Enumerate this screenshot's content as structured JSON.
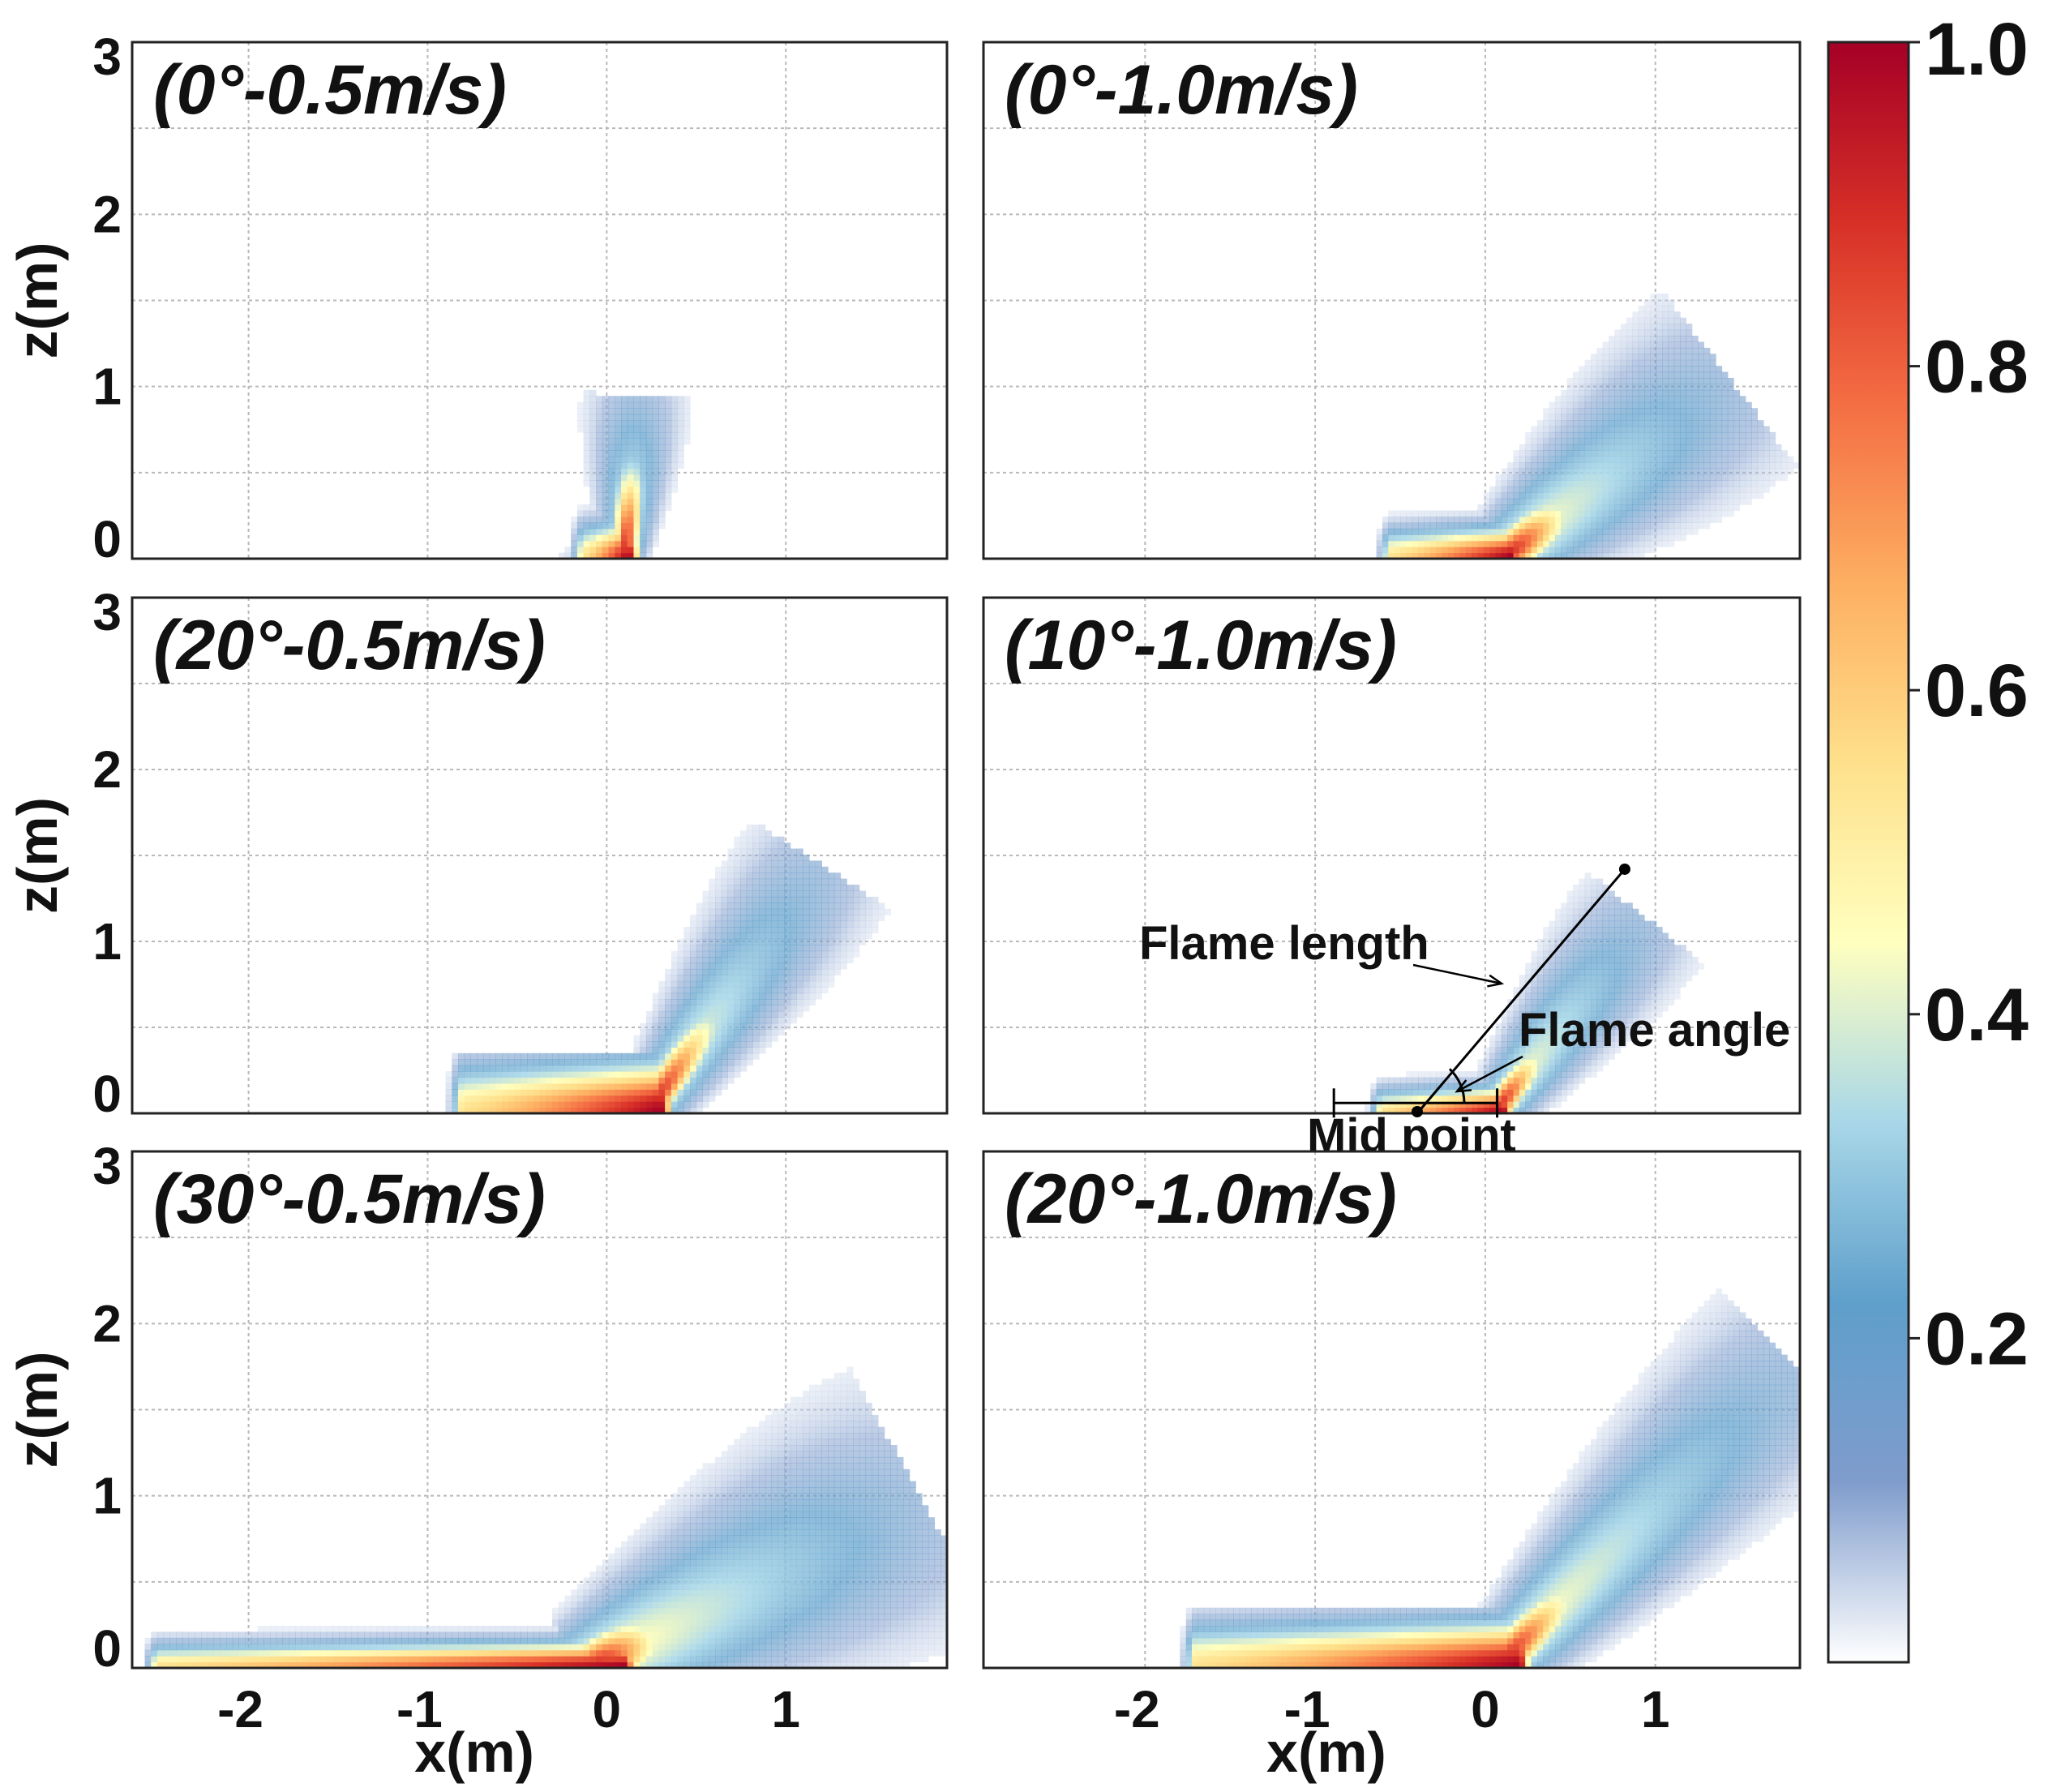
{
  "chart_data": [
    {
      "type": "heatmap",
      "title": "(0°-0.5m/s)",
      "xlabel": "",
      "ylabel": "z(m)",
      "xlim": [
        -2.65,
        1.9
      ],
      "ylim": [
        0,
        3
      ],
      "yticks": [
        "0",
        "1",
        "2",
        "3"
      ],
      "xticks": [],
      "grid": true,
      "flame": {
        "base_x": 0.0,
        "base_half_width": 0.12,
        "tilt_deg": 4,
        "core_length": 0.35,
        "plume_length": 0.95,
        "plume_width": 0.2
      }
    },
    {
      "type": "heatmap",
      "title": "(0°-1.0m/s)",
      "xlabel": "",
      "ylabel": "",
      "xlim": [
        -2.95,
        1.85
      ],
      "ylim": [
        0,
        3
      ],
      "yticks": [],
      "xticks": [],
      "grid": true,
      "flame": {
        "base_x": -0.2,
        "base_half_width": 0.35,
        "tilt_deg": 52,
        "core_length": 0.3,
        "plume_length": 1.7,
        "plume_width": 0.42
      }
    },
    {
      "type": "heatmap",
      "title": "(20°-0.5m/s)",
      "xlabel": "",
      "ylabel": "z(m)",
      "xlim": [
        -2.65,
        1.9
      ],
      "ylim": [
        0,
        3
      ],
      "yticks": [
        "0",
        "1",
        "2",
        "3"
      ],
      "xticks": [],
      "grid": true,
      "flame": {
        "base_x": -0.25,
        "base_half_width": 0.55,
        "tilt_deg": 34,
        "core_length": 0.5,
        "plume_length": 1.75,
        "plume_width": 0.3
      }
    },
    {
      "type": "heatmap",
      "title": "(10°-1.0m/s)",
      "xlabel": "",
      "ylabel": "",
      "xlim": [
        -2.95,
        1.85
      ],
      "ylim": [
        0,
        3
      ],
      "yticks": [],
      "xticks": [],
      "grid": true,
      "flame": {
        "base_x": -0.25,
        "base_half_width": 0.35,
        "tilt_deg": 38,
        "core_length": 0.25,
        "plume_length": 1.45,
        "plume_width": 0.28
      },
      "annotations": {
        "flame_length_label": "Flame length",
        "flame_angle_label": "Flame angle",
        "mid_point_label": "Mid point",
        "flame_line_start": [
          -0.4,
          0.0
        ],
        "flame_line_end": [
          0.82,
          1.42
        ],
        "base_segment": [
          -0.89,
          0.07
        ]
      }
    },
    {
      "type": "heatmap",
      "title": "(30°-0.5m/s)",
      "xlabel": "x(m)",
      "ylabel": "z(m)",
      "xlim": [
        -2.65,
        1.9
      ],
      "ylim": [
        0,
        3
      ],
      "yticks": [
        "0",
        "1",
        "2",
        "3"
      ],
      "xticks": [
        "-2",
        "-1",
        "0",
        "1"
      ],
      "grid": true,
      "flame": {
        "base_x": -1.2,
        "base_half_width": 1.3,
        "tilt_deg": 62,
        "core_length": 0.25,
        "plume_length": 2.1,
        "plume_width": 0.55
      }
    },
    {
      "type": "heatmap",
      "title": "(20°-1.0m/s)",
      "xlabel": "x(m)",
      "ylabel": "",
      "xlim": [
        -2.95,
        1.85
      ],
      "ylim": [
        0,
        3
      ],
      "yticks": [],
      "xticks": [
        "-2",
        "-1",
        "0",
        "1"
      ],
      "grid": true,
      "flame": {
        "base_x": -0.75,
        "base_half_width": 0.95,
        "tilt_deg": 45,
        "core_length": 0.45,
        "plume_length": 2.5,
        "plume_width": 0.4
      }
    }
  ],
  "colorbar": {
    "ticks": [
      "1.0",
      "0.8",
      "0.6",
      "0.4",
      "0.2"
    ],
    "tick_values": [
      1.0,
      0.8,
      0.6,
      0.4,
      0.2
    ],
    "range": [
      0.0,
      1.0
    ],
    "stops": [
      "#ffffff",
      "#7f9ccc",
      "#5f9fcb",
      "#a8d7e8",
      "#ffffbf",
      "#fee08b",
      "#fdae61",
      "#f46d43",
      "#d73027",
      "#a50026"
    ]
  }
}
